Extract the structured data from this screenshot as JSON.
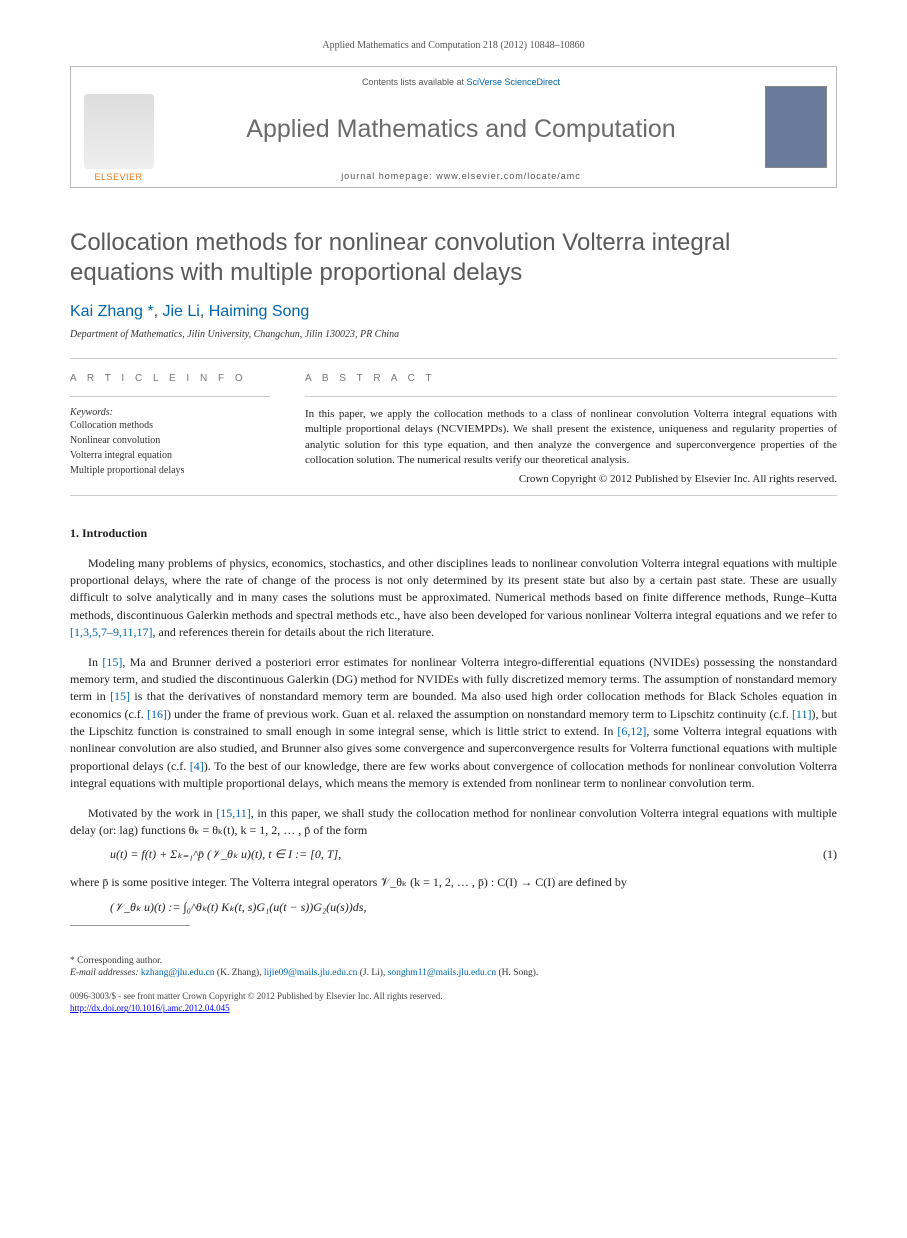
{
  "header": {
    "citation": "Applied Mathematics and Computation 218 (2012) 10848–10860"
  },
  "banner": {
    "contents_prefix": "Contents lists available at ",
    "contents_link": "SciVerse ScienceDirect",
    "journal": "Applied Mathematics and Computation",
    "homepage_label": "journal homepage: www.elsevier.com/locate/amc",
    "publisher": "ELSEVIER"
  },
  "title": "Collocation methods for nonlinear convolution Volterra integral equations with multiple proportional delays",
  "authors": {
    "a1": "Kai Zhang",
    "a2": "Jie Li",
    "a3": "Haiming Song"
  },
  "affiliation": "Department of Mathematics, Jilin University, Changchun, Jilin 130023, PR China",
  "info": {
    "section": "A R T I C L E   I N F O",
    "kw_head": "Keywords:",
    "kw1": "Collocation methods",
    "kw2": "Nonlinear convolution",
    "kw3": "Volterra integral equation",
    "kw4": "Multiple proportional delays"
  },
  "abstract": {
    "section": "A B S T R A C T",
    "text": "In this paper, we apply the collocation methods to a class of nonlinear convolution Volterra integral equations with multiple proportional delays (NCVIEMPDs). We shall present the existence, uniqueness and regularity properties of analytic solution for this type equation, and then analyze the convergence and superconvergence properties of the collocation solution. The numerical results verify our theoretical analysis.",
    "copyright": "Crown Copyright © 2012 Published by Elsevier Inc. All rights reserved."
  },
  "body": {
    "s1_title": "1. Introduction",
    "p1": "Modeling many problems of physics, economics, stochastics, and other disciplines leads to nonlinear convolution Volterra integral equations with multiple proportional delays, where the rate of change of the process is not only determined by its present state but also by a certain past state. These are usually difficult to solve analytically and in many cases the solutions must be approximated. Numerical methods based on finite difference methods, Runge–Kutta methods, discontinuous Galerkin methods and spectral methods etc., have also been developed for various nonlinear Volterra integral equations and we refer to ",
    "p1_refs": "[1,3,5,7–9,11,17]",
    "p1_tail": ", and references therein for details about the rich literature.",
    "p2a": "In ",
    "p2_ref1": "[15]",
    "p2b": ", Ma and Brunner derived a posteriori error estimates for nonlinear Volterra integro-differential equations (NVIDEs) possessing the nonstandard memory term, and studied the discontinuous Galerkin (DG) method for NVIDEs with fully discretized memory terms. The assumption of nonstandard memory term in ",
    "p2_ref2": "[15]",
    "p2c": " is that the derivatives of nonstandard memory term are bounded. Ma also used high order collocation methods for Black Scholes equation in economics (c.f. ",
    "p2_ref3": "[16]",
    "p2d": ") under the frame of previous work. Guan et al. relaxed the assumption on nonstandard memory term to Lipschitz continuity (c.f. ",
    "p2_ref4": "[11]",
    "p2e": "), but the Lipschitz function is constrained to small enough in some integral sense, which is little strict to extend. In ",
    "p2_ref5": "[6,12]",
    "p2f": ", some Volterra integral equations with nonlinear convolution are also studied, and Brunner also gives some convergence and superconvergence results for Volterra functional equations with multiple proportional delays (c.f. ",
    "p2_ref6": "[4]",
    "p2g": "). To the best of our knowledge, there are few works about convergence of collocation methods for nonlinear convolution Volterra integral equations with multiple proportional delays, which means the memory is extended from nonlinear term to nonlinear convolution term.",
    "p3a": "Motivated by the work in ",
    "p3_ref1": "[15,11]",
    "p3b": ", in this paper, we shall study the collocation method for nonlinear convolution Volterra integral equations with multiple delay (or: lag) functions θₖ = θₖ(t),  k = 1, 2, … , p̄ of the form",
    "eq1": "u(t) = f(t) + Σₖ₌₁^p̄ (𝒱_θₖ u)(t),    t ∈ I := [0, T],",
    "eq1_num": "(1)",
    "p4": "where p̄ is some positive integer. The Volterra integral operators 𝒱_θₖ (k = 1, 2, … , p̄) : C(I) → C(I) are defined by",
    "eq2": "(𝒱_θₖ u)(t) := ∫₀^θₖ(t) Kₖ(t, s)G₁(u(t − s))G₂(u(s))ds,"
  },
  "footer": {
    "corr": "* Corresponding author.",
    "email_label": "E-mail addresses: ",
    "e1": "kzhang@jlu.edu.cn",
    "e1n": " (K. Zhang), ",
    "e2": "lijie09@mails.jlu.edu.cn",
    "e2n": " (J. Li), ",
    "e3": "songhm11@mails.jlu.edu.cn",
    "e3n": " (H. Song).",
    "issn": "0096-3003/$ - see front matter Crown Copyright © 2012 Published by Elsevier Inc. All rights reserved.",
    "doi": "http://dx.doi.org/10.1016/j.amc.2012.04.045"
  }
}
